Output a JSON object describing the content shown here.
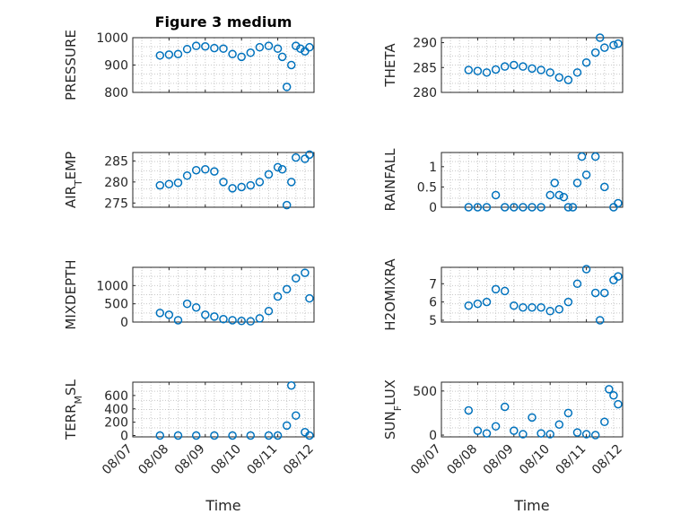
{
  "chart_data": [
    {
      "type": "scatter",
      "title": "Figure 3 medium",
      "ylabel": "PRESSURE",
      "xlabel": "",
      "xlim": [
        "08/07",
        "08/12"
      ],
      "ylim": [
        800,
        1000
      ],
      "yticks": [
        800,
        900,
        1000
      ],
      "grid": true,
      "marker_color": "#0072BD",
      "x": [
        "08/07 18:00",
        "08/08 00:00",
        "08/08 06:00",
        "08/08 12:00",
        "08/08 18:00",
        "08/09 00:00",
        "08/09 06:00",
        "08/09 12:00",
        "08/09 18:00",
        "08/10 00:00",
        "08/10 06:00",
        "08/10 12:00",
        "08/10 18:00",
        "08/11 00:00",
        "08/11 03:00",
        "08/11 06:00",
        "08/11 09:00",
        "08/11 12:00",
        "08/11 15:00",
        "08/11 18:00",
        "08/11 21:00"
      ],
      "y": [
        935,
        938,
        940,
        958,
        970,
        968,
        962,
        960,
        940,
        930,
        945,
        965,
        970,
        960,
        930,
        820,
        900,
        970,
        960,
        950,
        965
      ]
    },
    {
      "type": "scatter",
      "title": "",
      "ylabel": "THETA",
      "xlabel": "",
      "xlim": [
        "08/07",
        "08/12"
      ],
      "ylim": [
        280,
        291
      ],
      "yticks": [
        280,
        285,
        290
      ],
      "grid": true,
      "marker_color": "#0072BD",
      "x": [
        "08/07 18:00",
        "08/08 00:00",
        "08/08 06:00",
        "08/08 12:00",
        "08/08 18:00",
        "08/09 00:00",
        "08/09 06:00",
        "08/09 12:00",
        "08/09 18:00",
        "08/10 00:00",
        "08/10 06:00",
        "08/10 12:00",
        "08/10 18:00",
        "08/11 00:00",
        "08/11 06:00",
        "08/11 09:00",
        "08/11 12:00",
        "08/11 18:00",
        "08/11 21:00"
      ],
      "y": [
        284.5,
        284.3,
        284.0,
        284.6,
        285.2,
        285.5,
        285.2,
        284.8,
        284.5,
        284.0,
        283.0,
        282.5,
        284.0,
        286.0,
        288.0,
        291.0,
        289.0,
        289.5,
        289.8
      ]
    },
    {
      "type": "scatter",
      "title": "",
      "ylabel": "AIR_TEMP",
      "xlabel": "",
      "xlim": [
        "08/07",
        "08/12"
      ],
      "ylim": [
        274,
        287
      ],
      "yticks": [
        275,
        280,
        285
      ],
      "grid": true,
      "marker_color": "#0072BD",
      "x": [
        "08/07 18:00",
        "08/08 00:00",
        "08/08 06:00",
        "08/08 12:00",
        "08/08 18:00",
        "08/09 00:00",
        "08/09 06:00",
        "08/09 12:00",
        "08/09 18:00",
        "08/10 00:00",
        "08/10 06:00",
        "08/10 12:00",
        "08/10 18:00",
        "08/11 00:00",
        "08/11 03:00",
        "08/11 06:00",
        "08/11 09:00",
        "08/11 12:00",
        "08/11 18:00",
        "08/11 21:00"
      ],
      "y": [
        279.2,
        279.5,
        279.8,
        281.5,
        282.8,
        283.0,
        282.5,
        280.0,
        278.5,
        278.8,
        279.2,
        280.0,
        281.8,
        283.5,
        283.0,
        274.5,
        280.0,
        285.8,
        285.5,
        286.5
      ]
    },
    {
      "type": "scatter",
      "title": "",
      "ylabel": "RAINFALL",
      "xlabel": "",
      "xlim": [
        "08/07",
        "08/12"
      ],
      "ylim": [
        0,
        1.35
      ],
      "yticks": [
        0,
        0.5,
        1
      ],
      "grid": true,
      "marker_color": "#0072BD",
      "x": [
        "08/07 18:00",
        "08/08 00:00",
        "08/08 06:00",
        "08/08 12:00",
        "08/08 18:00",
        "08/09 00:00",
        "08/09 06:00",
        "08/09 12:00",
        "08/09 18:00",
        "08/10 00:00",
        "08/10 03:00",
        "08/10 06:00",
        "08/10 09:00",
        "08/10 12:00",
        "08/10 15:00",
        "08/10 18:00",
        "08/10 21:00",
        "08/11 00:00",
        "08/11 06:00",
        "08/11 12:00",
        "08/11 18:00",
        "08/11 21:00"
      ],
      "y": [
        0,
        0,
        0,
        0.3,
        0,
        0,
        0,
        0,
        0,
        0.3,
        0.6,
        0.3,
        0.25,
        0,
        0,
        0.6,
        1.25,
        0.8,
        1.25,
        0.5,
        0,
        0.1
      ]
    },
    {
      "type": "scatter",
      "title": "",
      "ylabel": "MIXDEPTH",
      "xlabel": "",
      "xlim": [
        "08/07",
        "08/12"
      ],
      "ylim": [
        0,
        1500
      ],
      "yticks": [
        0,
        500,
        1000
      ],
      "grid": true,
      "marker_color": "#0072BD",
      "x": [
        "08/07 18:00",
        "08/08 00:00",
        "08/08 06:00",
        "08/08 12:00",
        "08/08 18:00",
        "08/09 00:00",
        "08/09 06:00",
        "08/09 12:00",
        "08/09 18:00",
        "08/10 00:00",
        "08/10 06:00",
        "08/10 12:00",
        "08/10 18:00",
        "08/11 00:00",
        "08/11 06:00",
        "08/11 12:00",
        "08/11 18:00",
        "08/11 21:00"
      ],
      "y": [
        250,
        200,
        50,
        500,
        400,
        200,
        150,
        80,
        50,
        30,
        20,
        100,
        300,
        700,
        900,
        1200,
        1350,
        650
      ]
    },
    {
      "type": "scatter",
      "title": "",
      "ylabel": "H2OMIXRA",
      "xlabel": "",
      "xlim": [
        "08/07",
        "08/12"
      ],
      "ylim": [
        4.9,
        7.9
      ],
      "yticks": [
        5,
        6,
        7
      ],
      "grid": true,
      "marker_color": "#0072BD",
      "x": [
        "08/07 18:00",
        "08/08 00:00",
        "08/08 06:00",
        "08/08 12:00",
        "08/08 18:00",
        "08/09 00:00",
        "08/09 06:00",
        "08/09 12:00",
        "08/09 18:00",
        "08/10 00:00",
        "08/10 06:00",
        "08/10 12:00",
        "08/10 18:00",
        "08/11 00:00",
        "08/11 06:00",
        "08/11 09:00",
        "08/11 12:00",
        "08/11 18:00",
        "08/11 21:00"
      ],
      "y": [
        5.8,
        5.9,
        6.0,
        6.7,
        6.6,
        5.8,
        5.7,
        5.7,
        5.7,
        5.5,
        5.6,
        6.0,
        7.0,
        7.8,
        6.5,
        5.0,
        6.5,
        7.2,
        7.4
      ]
    },
    {
      "type": "scatter",
      "title": "",
      "ylabel": "TERR_MSL",
      "xlabel": "Time",
      "xlim": [
        "08/07",
        "08/12"
      ],
      "ylim": [
        -20,
        800
      ],
      "yticks": [
        0,
        200,
        400,
        600
      ],
      "xticks": [
        "08/07",
        "08/08",
        "08/09",
        "08/10",
        "08/11",
        "08/12"
      ],
      "grid": true,
      "marker_color": "#0072BD",
      "x": [
        "08/07 18:00",
        "08/08 06:00",
        "08/08 18:00",
        "08/09 06:00",
        "08/09 18:00",
        "08/10 06:00",
        "08/10 18:00",
        "08/11 00:00",
        "08/11 06:00",
        "08/11 09:00",
        "08/11 12:00",
        "08/11 18:00",
        "08/11 21:00"
      ],
      "y": [
        0,
        0,
        0,
        0,
        0,
        0,
        0,
        0,
        150,
        750,
        300,
        50,
        0
      ]
    },
    {
      "type": "scatter",
      "title": "",
      "ylabel": "SUN_FLUX",
      "xlabel": "Time",
      "xlim": [
        "08/07",
        "08/12"
      ],
      "ylim": [
        -20,
        600
      ],
      "yticks": [
        0,
        500
      ],
      "xticks": [
        "08/07",
        "08/08",
        "08/09",
        "08/10",
        "08/11",
        "08/12"
      ],
      "grid": true,
      "marker_color": "#0072BD",
      "x": [
        "08/07 18:00",
        "08/08 00:00",
        "08/08 06:00",
        "08/08 12:00",
        "08/08 18:00",
        "08/09 00:00",
        "08/09 06:00",
        "08/09 12:00",
        "08/09 18:00",
        "08/10 00:00",
        "08/10 06:00",
        "08/10 12:00",
        "08/10 18:00",
        "08/11 00:00",
        "08/11 06:00",
        "08/11 12:00",
        "08/11 15:00",
        "08/11 18:00",
        "08/11 21:00"
      ],
      "y": [
        280,
        50,
        20,
        100,
        320,
        50,
        10,
        200,
        20,
        10,
        120,
        250,
        30,
        10,
        0,
        150,
        520,
        450,
        350
      ]
    }
  ]
}
